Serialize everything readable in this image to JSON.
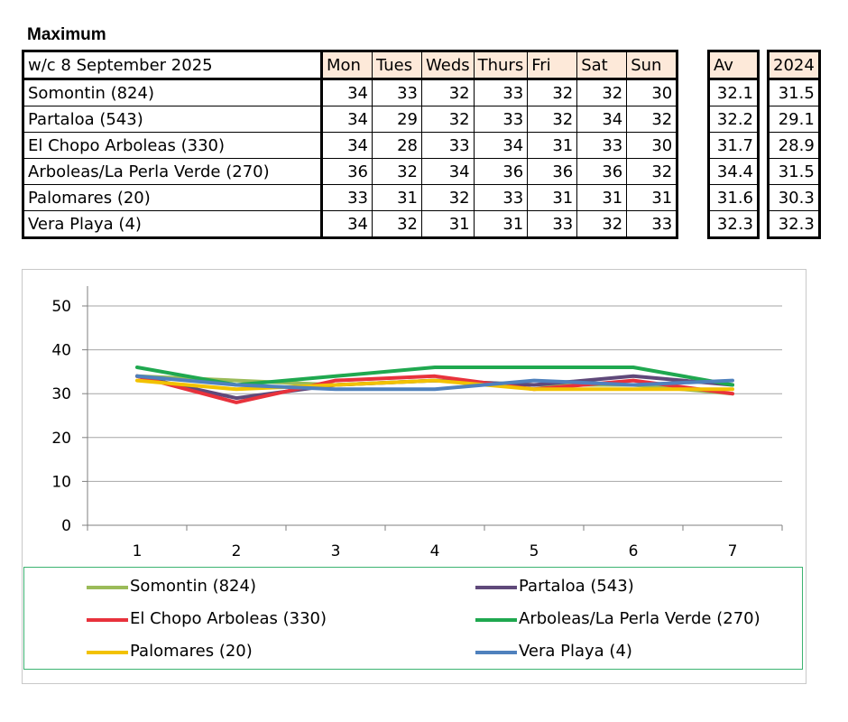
{
  "heading": "Maximum",
  "table": {
    "corner": "w/c 8 September  2025",
    "days": [
      "Mon",
      "Tues",
      "Weds",
      "Thurs",
      "Fri",
      "Sat",
      "Sun"
    ],
    "av_header": "Av",
    "prev_header": "2024",
    "rows": [
      {
        "name": "Somontin (824)",
        "values": [
          "34",
          "33",
          "32",
          "33",
          "32",
          "32",
          "30"
        ],
        "av": "32.1",
        "prev": "31.5"
      },
      {
        "name": "Partaloa (543)",
        "values": [
          "34",
          "29",
          "32",
          "33",
          "32",
          "34",
          "32"
        ],
        "av": "32.2",
        "prev": "29.1"
      },
      {
        "name": "El Chopo  Arboleas (330)",
        "values": [
          "34",
          "28",
          "33",
          "34",
          "31",
          "33",
          "30"
        ],
        "av": "31.7",
        "prev": "28.9"
      },
      {
        "name": "Arboleas/La Perla Verde (270)",
        "values": [
          "36",
          "32",
          "34",
          "36",
          "36",
          "36",
          "32"
        ],
        "av": "34.4",
        "prev": "31.5"
      },
      {
        "name": "Palomares (20)",
        "values": [
          "33",
          "31",
          "32",
          "33",
          "31",
          "31",
          "31"
        ],
        "av": "31.6",
        "prev": "30.3"
      },
      {
        "name": "Vera Playa (4)",
        "values": [
          "34",
          "32",
          "31",
          "31",
          "33",
          "32",
          "33"
        ],
        "av": "32.3",
        "prev": "32.3"
      }
    ]
  },
  "chart_data": {
    "type": "line",
    "x": [
      1,
      2,
      3,
      4,
      5,
      6,
      7
    ],
    "ylim": [
      0,
      50
    ],
    "yticks": [
      0,
      10,
      20,
      30,
      40,
      50
    ],
    "grid": true,
    "legend_position": "bottom",
    "series": [
      {
        "name": "Somontin (824)",
        "color": "#9bbb59",
        "values": [
          34,
          33,
          32,
          33,
          32,
          32,
          30
        ]
      },
      {
        "name": "Partaloa (543)",
        "color": "#5f497a",
        "values": [
          34,
          29,
          32,
          33,
          32,
          34,
          32
        ]
      },
      {
        "name": "El Chopo  Arboleas (330)",
        "color": "#e8323c",
        "values": [
          34,
          28,
          33,
          34,
          31,
          33,
          30
        ]
      },
      {
        "name": "Arboleas/La Perla Verde (270)",
        "color": "#1fa84f",
        "values": [
          36,
          32,
          34,
          36,
          36,
          36,
          32
        ]
      },
      {
        "name": "Palomares (20)",
        "color": "#f2c200",
        "values": [
          33,
          31,
          32,
          33,
          31,
          31,
          31
        ]
      },
      {
        "name": "Vera Playa (4)",
        "color": "#4f81bd",
        "values": [
          34,
          32,
          31,
          31,
          33,
          32,
          33
        ]
      }
    ]
  }
}
